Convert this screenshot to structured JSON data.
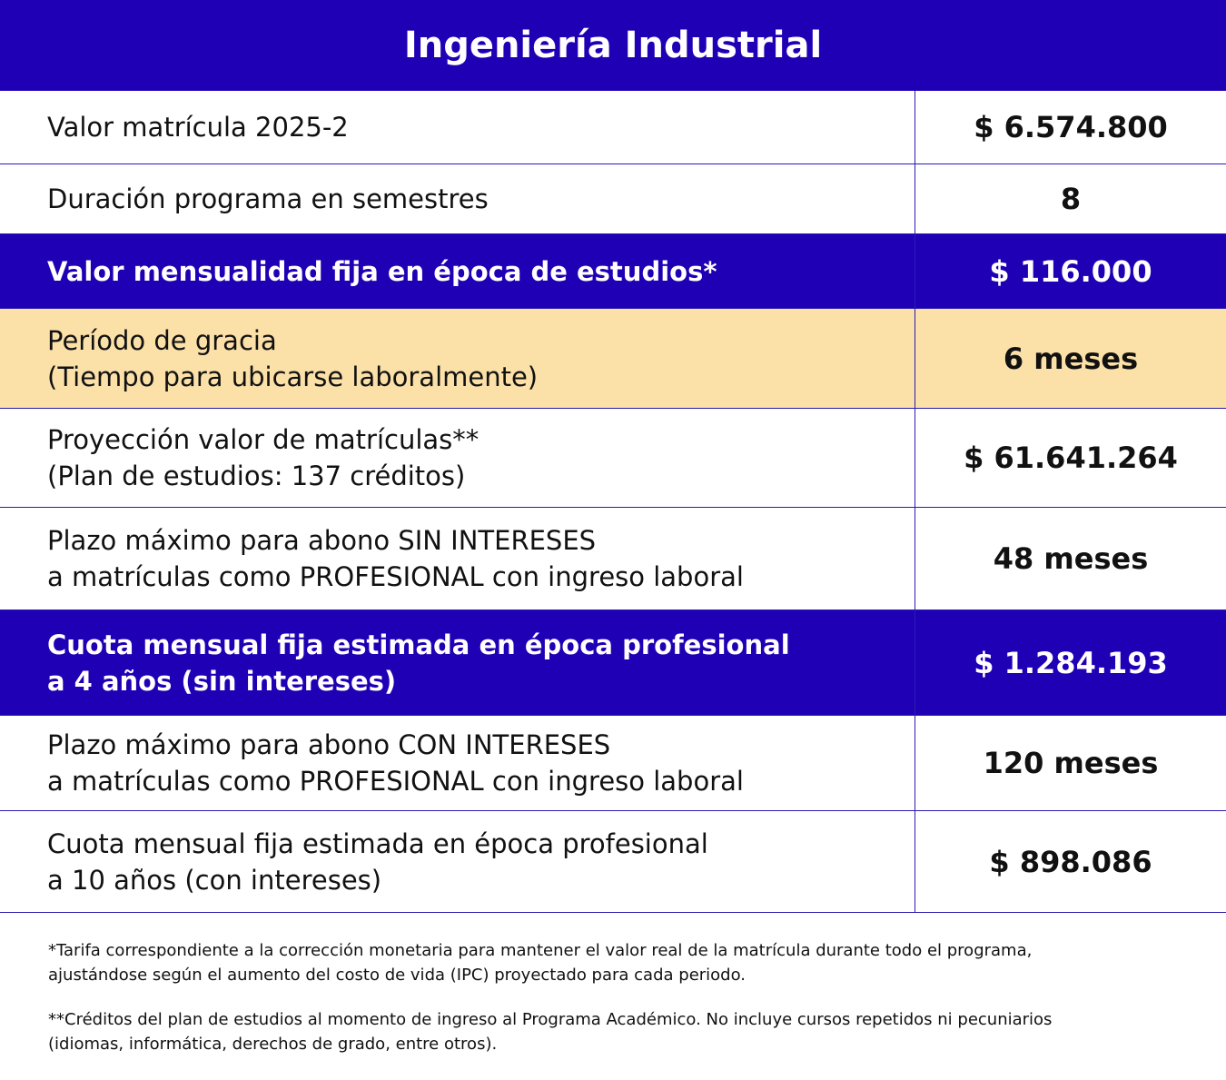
{
  "header": {
    "title": "Ingeniería Industrial"
  },
  "table": {
    "rows": [
      {
        "label": [
          "Valor matrícula 2025-2"
        ],
        "value": "$ 6.574.800"
      },
      {
        "label": [
          "Duración programa en semestres"
        ],
        "value": "8"
      },
      {
        "label": [
          "Valor mensualidad fija en época de estudios*"
        ],
        "value": "$ 116.000"
      },
      {
        "label": [
          "Período de gracia",
          "(Tiempo para ubicarse laboralmente)"
        ],
        "value": "6 meses"
      },
      {
        "label": [
          "Proyección valor de matrículas**",
          "(Plan de estudios: 137 créditos)"
        ],
        "value": "$ 61.641.264"
      },
      {
        "label": [
          "Plazo máximo para abono SIN INTERESES",
          "a matrículas como PROFESIONAL con ingreso laboral"
        ],
        "value": "48 meses"
      },
      {
        "label": [
          "Cuota mensual fija estimada en época profesional",
          "a 4 años (sin intereses)"
        ],
        "value": "$ 1.284.193"
      },
      {
        "label": [
          "Plazo máximo para abono CON INTERESES",
          "a matrículas como PROFESIONAL con ingreso laboral"
        ],
        "value": "120 meses"
      },
      {
        "label": [
          "Cuota mensual fija estimada en época profesional",
          "a 10 años (con intereses)"
        ],
        "value": "$ 898.086"
      }
    ]
  },
  "footnotes": [
    [
      "*Tarifa correspondiente a la corrección monetaria para mantener el valor real de la matrícula durante todo el programa,",
      "ajustándose según el aumento del costo de vida (IPC) proyectado para cada periodo."
    ],
    [
      "**Créditos del plan de estudios al momento de ingreso al Programa Académico. No incluye cursos repetidos ni pecuniarios",
      "(idiomas, informática, derechos de grado, entre otros)."
    ]
  ]
}
